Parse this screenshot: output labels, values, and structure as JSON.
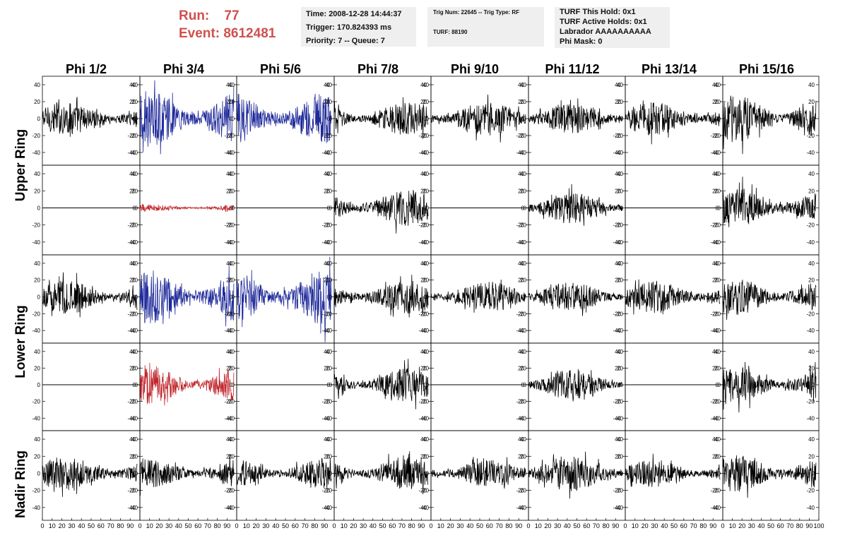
{
  "run_info": {
    "run_label": "Run:",
    "run_value": "77",
    "event_label": "Event:",
    "event_value": "8612481"
  },
  "header_box_1": {
    "time": "Time: 2008-12-28 14:44:37",
    "trigger": "Trigger: 170.824393 ms",
    "priority": "Priority: 7 -- Queue: 7"
  },
  "header_box_2": {
    "trig": "Trig Num: 22645 -- Trig Type: RF",
    "turf": "TURF: 88190"
  },
  "header_box_3": {
    "this_hold": "TURF This Hold: 0x1",
    "active_holds": "TURF Active Holds: 0x1",
    "labrador": "Labrador AAAAAAAAAA",
    "phi_mask": "Phi Mask: 0"
  },
  "column_headers": [
    "Phi 1/2",
    "Phi 3/4",
    "Phi 5/6",
    "Phi 7/8",
    "Phi 9/10",
    "Phi 11/12",
    "Phi 13/14",
    "Phi 15/16"
  ],
  "ring_labels": [
    "Upper Ring",
    "Lower Ring",
    "Nadir Ring"
  ],
  "colors": {
    "normal": "#000000",
    "triggered_upper": "#1f2a9a",
    "triggered_lower": "#c0262b",
    "header_red": "#d0504f",
    "box_bg": "#efefef"
  },
  "chart_data": {
    "type": "line",
    "description_grid": "5 rows x 8 columns of waveform panels",
    "x_range": [
      0,
      100
    ],
    "y_range": [
      -55,
      50
    ],
    "y_ticks": [
      -40,
      -20,
      0,
      20,
      40
    ],
    "x_tick_labels": [
      "0",
      "10",
      "20",
      "30",
      "40",
      "50",
      "60",
      "70",
      "80",
      "90",
      "100"
    ],
    "panels": [
      [
        {
          "color": "normal",
          "amp": 20
        },
        {
          "color": "triggered_upper",
          "amp": 34
        },
        {
          "color": "triggered_upper",
          "amp": 32
        },
        {
          "color": "normal",
          "amp": 20
        },
        {
          "color": "normal",
          "amp": 20
        },
        {
          "color": "normal",
          "amp": 18
        },
        {
          "color": "normal",
          "amp": 20
        },
        {
          "color": "normal",
          "amp": 28
        }
      ],
      [
        {
          "color": "flat",
          "amp": 0
        },
        {
          "color": "triggered_lower",
          "amp": 4
        },
        {
          "color": "flat",
          "amp": 0
        },
        {
          "color": "normal",
          "amp": 22
        },
        {
          "color": "flat",
          "amp": 0
        },
        {
          "color": "normal",
          "amp": 18
        },
        {
          "color": "flat",
          "amp": 0
        },
        {
          "color": "normal",
          "amp": 24
        }
      ],
      [
        {
          "color": "normal",
          "amp": 20
        },
        {
          "color": "triggered_upper",
          "amp": 32
        },
        {
          "color": "triggered_upper",
          "amp": 34
        },
        {
          "color": "normal",
          "amp": 20
        },
        {
          "color": "normal",
          "amp": 18
        },
        {
          "color": "normal",
          "amp": 18
        },
        {
          "color": "normal",
          "amp": 20
        },
        {
          "color": "normal",
          "amp": 22
        }
      ],
      [
        {
          "color": "flat",
          "amp": 0
        },
        {
          "color": "triggered_lower",
          "amp": 24
        },
        {
          "color": "flat",
          "amp": 0
        },
        {
          "color": "normal",
          "amp": 20
        },
        {
          "color": "flat",
          "amp": 0
        },
        {
          "color": "normal",
          "amp": 18
        },
        {
          "color": "flat",
          "amp": 0
        },
        {
          "color": "normal",
          "amp": 22
        }
      ],
      [
        {
          "color": "normal",
          "amp": 20
        },
        {
          "color": "normal",
          "amp": 18
        },
        {
          "color": "normal",
          "amp": 18
        },
        {
          "color": "normal",
          "amp": 20
        },
        {
          "color": "normal",
          "amp": 16
        },
        {
          "color": "normal",
          "amp": 22
        },
        {
          "color": "normal",
          "amp": 16
        },
        {
          "color": "normal",
          "amp": 22
        }
      ]
    ]
  }
}
